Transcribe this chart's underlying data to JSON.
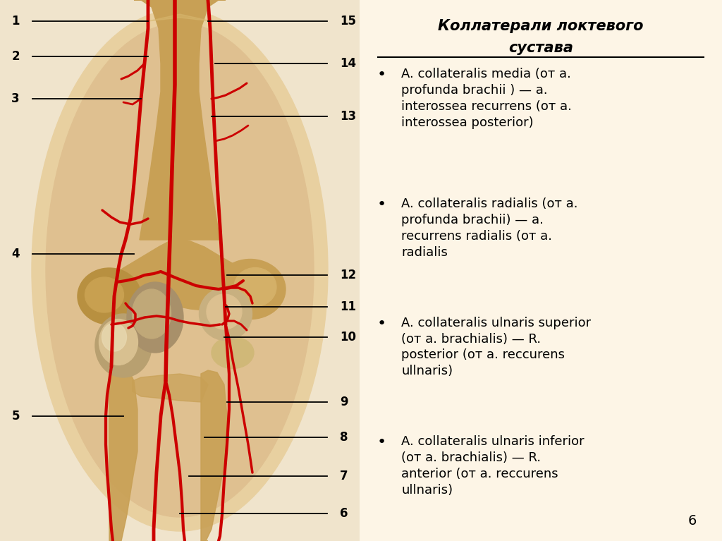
{
  "bg_color_left": "#e8d8b8",
  "bg_color_right": "#fdf5e6",
  "title_line1": "Коллатерали локтевого",
  "title_line2": "сустава",
  "title_fontsize": 15,
  "bullet_fontsize": 13,
  "bullets": [
    "A. collateralis media (от а.\nprofunda brachii ) — а.\ninterossea recurrens (от а.\ninterossea posterior)",
    "A. collateralis radialis (от а.\nprofunda brachii) — а.\nrecurrens radialis (от а.\nradialis",
    "A. collateralis ulnaris superior\n(от а. brachialis) — R.\nposterior (от а. reccurens\nullnaris)",
    "A. collateralis ulnaris inferior\n(от а. brachialis) — R.\nanterior (от а. reccurens\nullnaris)"
  ],
  "page_number": "6",
  "artery_color": "#cc0000",
  "label_color": "#000000",
  "line_color": "#000000"
}
